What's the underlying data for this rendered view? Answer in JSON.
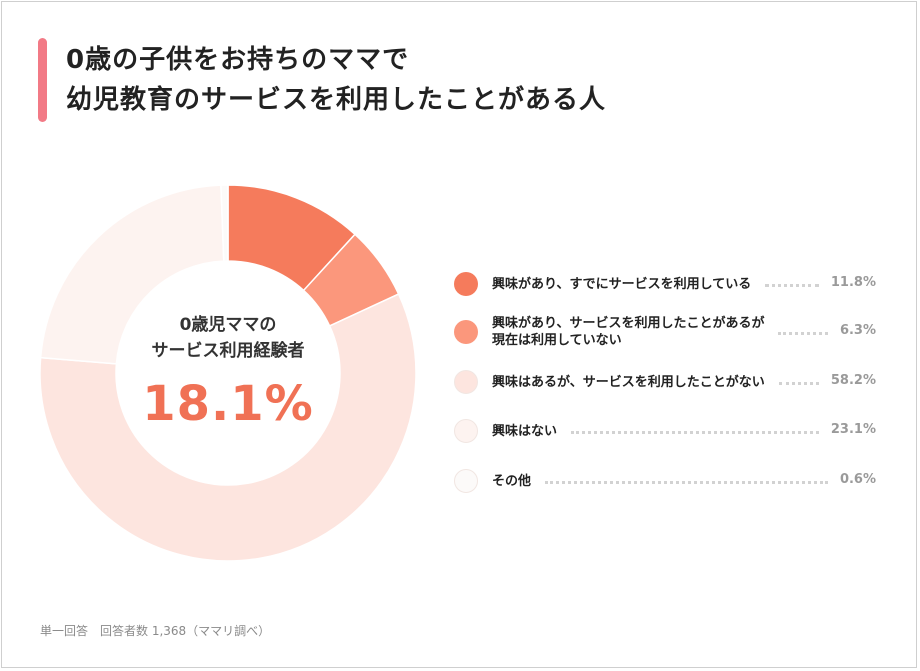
{
  "title": {
    "line1": "0歳の子供をお持ちのママで",
    "line2": "幼児教育のサービスを利用したことがある人"
  },
  "center": {
    "label_line1": "0歳児ママの",
    "label_line2": "サービス利用経験者",
    "value": "18.1%"
  },
  "footnote": {
    "answer_type": "単一回答",
    "respondents": "回答者数 1,368（ママリ調べ）"
  },
  "colors": {
    "accent": "#f27a86",
    "value_text": "#f07155"
  },
  "chart_data": {
    "type": "pie",
    "style": "donut",
    "start_angle": "top, clockwise",
    "legend_position": "right",
    "slices": [
      {
        "label_lines": [
          "興味があり、すでにサービスを利用している"
        ],
        "value": 11.8,
        "value_text": "11.8%",
        "color": "#f57b5c"
      },
      {
        "label_lines": [
          "興味があり、サービスを利用したことがあるが",
          "現在は利用していない"
        ],
        "value": 6.3,
        "value_text": "6.3%",
        "color": "#fb977c"
      },
      {
        "label_lines": [
          "興味はあるが、サービスを利用したことがない"
        ],
        "value": 58.2,
        "value_text": "58.2%",
        "color": "#fde5df"
      },
      {
        "label_lines": [
          "興味はない"
        ],
        "value": 23.1,
        "value_text": "23.1%",
        "color": "#fdf3f0"
      },
      {
        "label_lines": [
          "その他"
        ],
        "value": 0.6,
        "value_text": "0.6%",
        "color": "#fcfaf9"
      }
    ]
  }
}
